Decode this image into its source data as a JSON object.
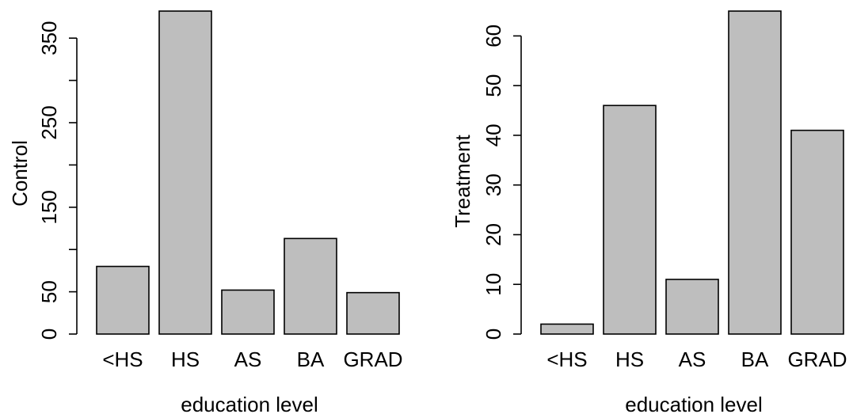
{
  "chart_data": [
    {
      "type": "bar",
      "categories": [
        "<HS",
        "HS",
        "AS",
        "BA",
        "GRAD"
      ],
      "values": [
        80,
        382,
        52,
        113,
        49
      ],
      "xlabel": "education level",
      "ylabel": "Control",
      "ylim": [
        0,
        382
      ],
      "yticks": [
        "0",
        "50",
        "150",
        "250",
        "350"
      ],
      "ytick_values": [
        0,
        50,
        100,
        150,
        200,
        250,
        300,
        350
      ],
      "bar_color": "#bebebe",
      "grid": false
    },
    {
      "type": "bar",
      "categories": [
        "<HS",
        "HS",
        "AS",
        "BA",
        "GRAD"
      ],
      "values": [
        2,
        46,
        11,
        65,
        41
      ],
      "xlabel": "education level",
      "ylabel": "Treatment",
      "ylim": [
        0,
        65
      ],
      "yticks": [
        "0",
        "10",
        "20",
        "30",
        "40",
        "50",
        "60"
      ],
      "ytick_values": [
        0,
        10,
        20,
        30,
        40,
        50,
        60
      ],
      "bar_color": "#bebebe",
      "grid": false
    }
  ]
}
